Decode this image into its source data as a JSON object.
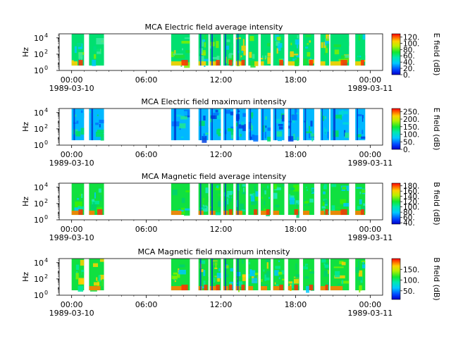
{
  "chart_data": [
    {
      "type": "heatmap",
      "title": "MCA  Electric field average intensity",
      "ylabel": "Hz",
      "y_scale": "log",
      "ylim": [
        1,
        31623
      ],
      "y_ticks": [
        {
          "label": "10",
          "exp": "0",
          "value": 1
        },
        {
          "label": "10",
          "exp": "2",
          "value": 100
        },
        {
          "label": "10",
          "exp": "4",
          "value": 10000
        }
      ],
      "x_ticks": [
        {
          "label": "00:00",
          "date": "1989-03-10",
          "hour": 0
        },
        {
          "label": "06:00",
          "date": "",
          "hour": 6
        },
        {
          "label": "12:00",
          "date": "",
          "hour": 12
        },
        {
          "label": "18:00",
          "date": "",
          "hour": 18
        },
        {
          "label": "00:00",
          "date": "1989-03-11",
          "hour": 24
        }
      ],
      "xlim_hours": [
        -1,
        25
      ],
      "data_intervals_hours": [
        [
          0,
          1
        ],
        [
          1.4,
          2.6
        ],
        [
          8,
          9.5
        ],
        [
          10.2,
          11
        ],
        [
          11.1,
          12
        ],
        [
          12.2,
          13
        ],
        [
          13.2,
          14
        ],
        [
          14.2,
          15
        ],
        [
          15.2,
          16
        ],
        [
          16.2,
          17.1
        ],
        [
          17.4,
          18.3
        ],
        [
          18.6,
          19.5
        ],
        [
          20,
          20.7
        ],
        [
          20.8,
          22.3
        ],
        [
          22.8,
          23.6
        ]
      ],
      "colorbar": {
        "label": "E field (dB)",
        "min": 0,
        "max": 130,
        "ticks": [
          0,
          20,
          40,
          60,
          80,
          100,
          120
        ],
        "tick_labels": [
          "0.",
          "20.",
          "40.",
          "60.",
          "80.",
          "100.",
          "120."
        ]
      }
    },
    {
      "type": "heatmap",
      "title": "MCA  Electric field maximum intensity",
      "ylabel": "Hz",
      "y_scale": "log",
      "ylim": [
        1,
        31623
      ],
      "y_ticks": [
        {
          "label": "10",
          "exp": "0",
          "value": 1
        },
        {
          "label": "10",
          "exp": "2",
          "value": 100
        },
        {
          "label": "10",
          "exp": "4",
          "value": 10000
        }
      ],
      "x_ticks": [
        {
          "label": "00:00",
          "date": "1989-03-10",
          "hour": 0
        },
        {
          "label": "06:00",
          "date": "",
          "hour": 6
        },
        {
          "label": "12:00",
          "date": "",
          "hour": 12
        },
        {
          "label": "18:00",
          "date": "",
          "hour": 18
        },
        {
          "label": "00:00",
          "date": "1989-03-11",
          "hour": 24
        }
      ],
      "xlim_hours": [
        -1,
        25
      ],
      "data_intervals_hours": [
        [
          0,
          1
        ],
        [
          1.4,
          2.6
        ],
        [
          8,
          9.5
        ],
        [
          10.2,
          11
        ],
        [
          11.1,
          12
        ],
        [
          12.2,
          13
        ],
        [
          13.2,
          14
        ],
        [
          14.2,
          15
        ],
        [
          15.2,
          16
        ],
        [
          16.2,
          17.1
        ],
        [
          17.4,
          18.3
        ],
        [
          18.6,
          19.5
        ],
        [
          20,
          20.7
        ],
        [
          20.8,
          22.3
        ],
        [
          22.8,
          23.6
        ]
      ],
      "colorbar": {
        "label": "E field (dB)",
        "min": 0,
        "max": 270,
        "ticks": [
          0,
          50,
          100,
          150,
          200,
          250
        ],
        "tick_labels": [
          "0.",
          "50.",
          "100.",
          "150.",
          "200.",
          "250."
        ]
      }
    },
    {
      "type": "heatmap",
      "title": "MCA  Magnetic field average intensity",
      "ylabel": "Hz",
      "y_scale": "log",
      "ylim": [
        1,
        31623
      ],
      "y_ticks": [
        {
          "label": "10",
          "exp": "0",
          "value": 1
        },
        {
          "label": "10",
          "exp": "2",
          "value": 100
        },
        {
          "label": "10",
          "exp": "4",
          "value": 10000
        }
      ],
      "x_ticks": [
        {
          "label": "00:00",
          "date": "1989-03-10",
          "hour": 0
        },
        {
          "label": "06:00",
          "date": "",
          "hour": 6
        },
        {
          "label": "12:00",
          "date": "",
          "hour": 12
        },
        {
          "label": "18:00",
          "date": "",
          "hour": 18
        },
        {
          "label": "00:00",
          "date": "1989-03-11",
          "hour": 24
        }
      ],
      "xlim_hours": [
        -1,
        25
      ],
      "data_intervals_hours": [
        [
          0,
          1
        ],
        [
          1.4,
          2.6
        ],
        [
          8,
          9.5
        ],
        [
          10.2,
          11
        ],
        [
          11.1,
          12
        ],
        [
          12.2,
          13
        ],
        [
          13.2,
          14
        ],
        [
          14.2,
          15
        ],
        [
          15.2,
          16
        ],
        [
          16.2,
          17.1
        ],
        [
          17.4,
          18.3
        ],
        [
          18.6,
          19.5
        ],
        [
          20,
          20.7
        ],
        [
          20.8,
          22.3
        ],
        [
          22.8,
          23.6
        ]
      ],
      "colorbar": {
        "label": "B field (dB)",
        "min": 35,
        "max": 190,
        "ticks": [
          40,
          60,
          80,
          100,
          120,
          140,
          160,
          180
        ],
        "tick_labels": [
          "40.",
          "60.",
          "80.",
          "100.",
          "120.",
          "140.",
          "160.",
          "180."
        ]
      }
    },
    {
      "type": "heatmap",
      "title": "MCA  Magnetic field maximum intensity",
      "ylabel": "Hz",
      "y_scale": "log",
      "ylim": [
        1,
        31623
      ],
      "y_ticks": [
        {
          "label": "10",
          "exp": "0",
          "value": 1
        },
        {
          "label": "10",
          "exp": "2",
          "value": 100
        },
        {
          "label": "10",
          "exp": "4",
          "value": 10000
        }
      ],
      "x_ticks": [
        {
          "label": "00:00",
          "date": "1989-03-10",
          "hour": 0
        },
        {
          "label": "06:00",
          "date": "",
          "hour": 6
        },
        {
          "label": "12:00",
          "date": "",
          "hour": 12
        },
        {
          "label": "18:00",
          "date": "",
          "hour": 18
        },
        {
          "label": "00:00",
          "date": "1989-03-11",
          "hour": 24
        }
      ],
      "xlim_hours": [
        -1,
        25
      ],
      "data_intervals_hours": [
        [
          0,
          1
        ],
        [
          1.4,
          2.6
        ],
        [
          8,
          9.5
        ],
        [
          10.2,
          11
        ],
        [
          11.1,
          12
        ],
        [
          12.2,
          13
        ],
        [
          13.2,
          14
        ],
        [
          14.2,
          15
        ],
        [
          15.2,
          16
        ],
        [
          16.2,
          17.1
        ],
        [
          17.4,
          18.3
        ],
        [
          18.6,
          19.5
        ],
        [
          20,
          20.7
        ],
        [
          20.8,
          22.3
        ],
        [
          22.8,
          23.6
        ]
      ],
      "colorbar": {
        "label": "B field (dB)",
        "min": 10,
        "max": 200,
        "ticks": [
          50,
          100,
          150
        ],
        "tick_labels": [
          "50.",
          "100.",
          "150."
        ]
      }
    }
  ]
}
